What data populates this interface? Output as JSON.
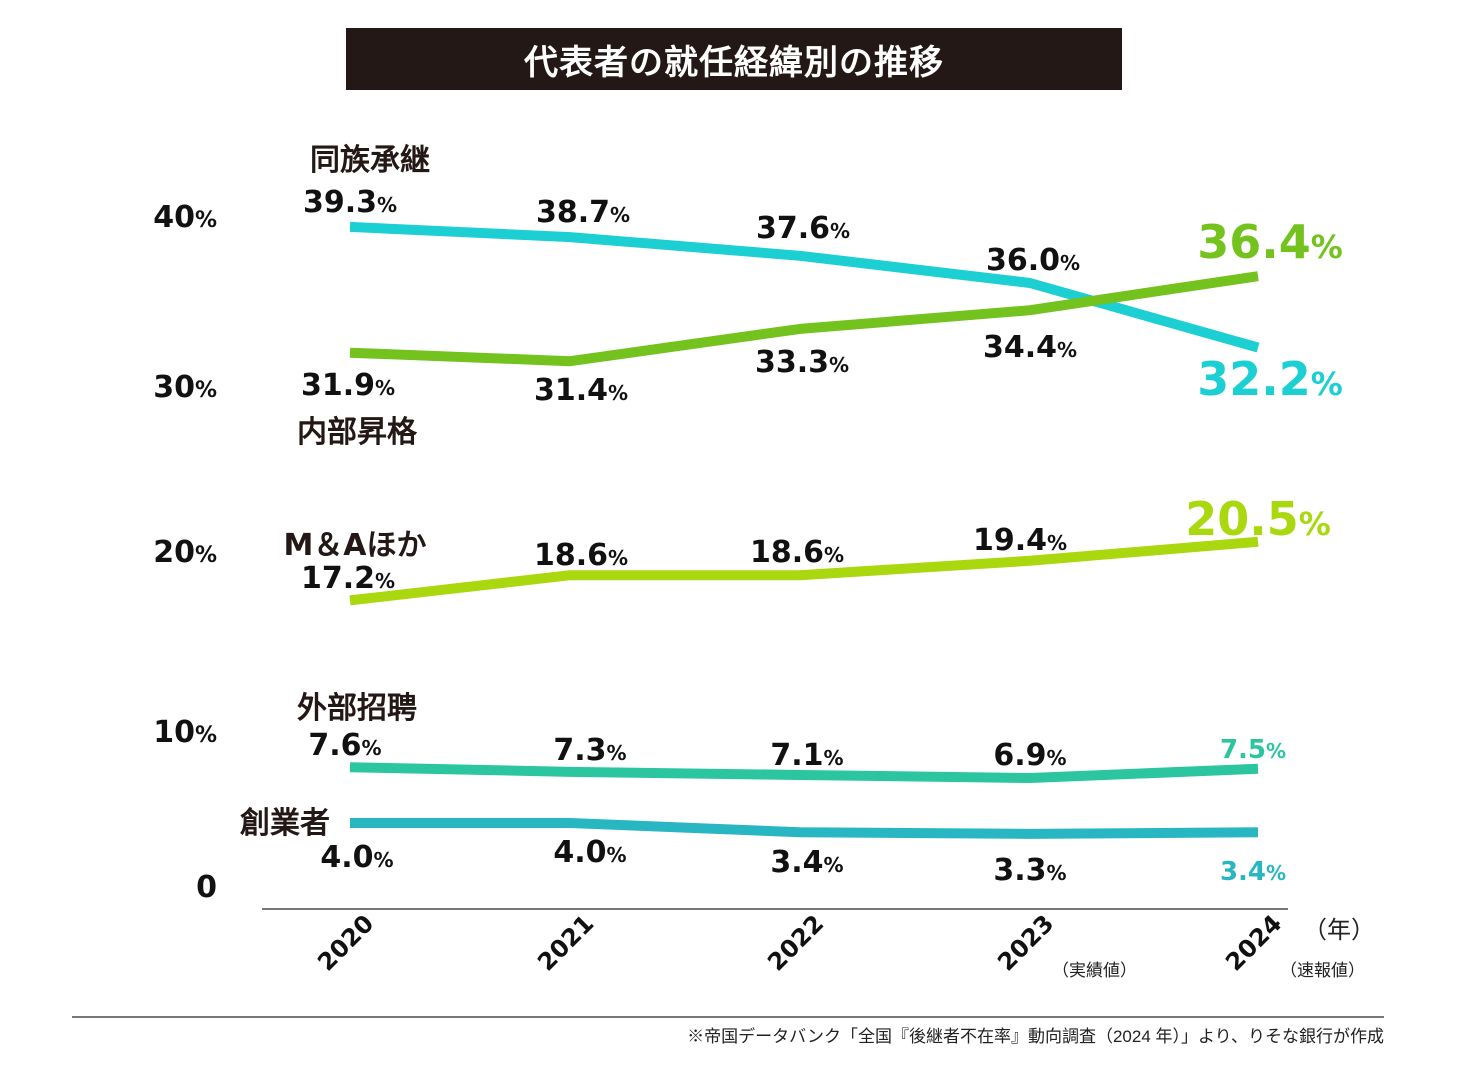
{
  "chart_data": {
    "type": "line",
    "title": "代表者の就任経緯別の推移",
    "categories": [
      "2020",
      "2021",
      "2022",
      "2023",
      "2024"
    ],
    "category_notes": [
      "",
      "",
      "",
      "（実績値）",
      "（速報値）"
    ],
    "xlabel": "（年）",
    "ylabel": "",
    "unit": "%",
    "yticks": [
      "0",
      "10",
      "20",
      "30",
      "40"
    ],
    "ylim": [
      0,
      40
    ],
    "grid": false,
    "series": [
      {
        "name": "同族承継",
        "values": [
          39.3,
          38.7,
          37.6,
          36.0,
          32.2
        ],
        "color": "#1ccfd3"
      },
      {
        "name": "内部昇格",
        "values": [
          31.9,
          31.4,
          33.3,
          34.4,
          36.4
        ],
        "color": "#73c21d"
      },
      {
        "name": "M＆Aほか",
        "values": [
          17.2,
          18.6,
          18.6,
          19.4,
          20.5
        ],
        "color": "#a9d80f"
      },
      {
        "name": "外部招聘",
        "values": [
          7.6,
          7.3,
          7.1,
          6.9,
          7.5
        ],
        "color": "#2bc69f"
      },
      {
        "name": "創業者",
        "values": [
          4.0,
          4.0,
          3.4,
          3.3,
          3.4
        ],
        "color": "#28b7c2"
      }
    ]
  },
  "source": "※帝国データバンク「全国『後継者不在率』動向調査（2024 年）」より、りそな銀行が作成"
}
